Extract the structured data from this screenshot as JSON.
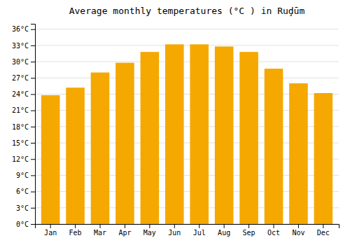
{
  "chart_data": {
    "type": "bar",
    "title": "Average monthly temperatures (°C ) in Ruḑūm",
    "categories": [
      "Jan",
      "Feb",
      "Mar",
      "Apr",
      "May",
      "Jun",
      "Jul",
      "Aug",
      "Sep",
      "Oct",
      "Nov",
      "Dec"
    ],
    "values": [
      23.8,
      25.2,
      28.0,
      29.8,
      31.8,
      33.2,
      33.2,
      32.8,
      31.8,
      28.7,
      26.0,
      24.2
    ],
    "color": "#F5A800",
    "ylim": [
      0,
      37
    ],
    "yticks": [
      {
        "value": 0,
        "label": "0°C"
      },
      {
        "value": 3,
        "label": "3°C"
      },
      {
        "value": 6,
        "label": "6°C"
      },
      {
        "value": 9,
        "label": "9°C"
      },
      {
        "value": 12,
        "label": "12°C"
      },
      {
        "value": 15,
        "label": "15°C"
      },
      {
        "value": 18,
        "label": "18°C"
      },
      {
        "value": 21,
        "label": "21°C"
      },
      {
        "value": 24,
        "label": "24°C"
      },
      {
        "value": 27,
        "label": "27°C"
      },
      {
        "value": 30,
        "label": "30°C"
      },
      {
        "value": 33,
        "label": "33°C"
      },
      {
        "value": 36,
        "label": "36°C"
      }
    ],
    "grid": true
  }
}
